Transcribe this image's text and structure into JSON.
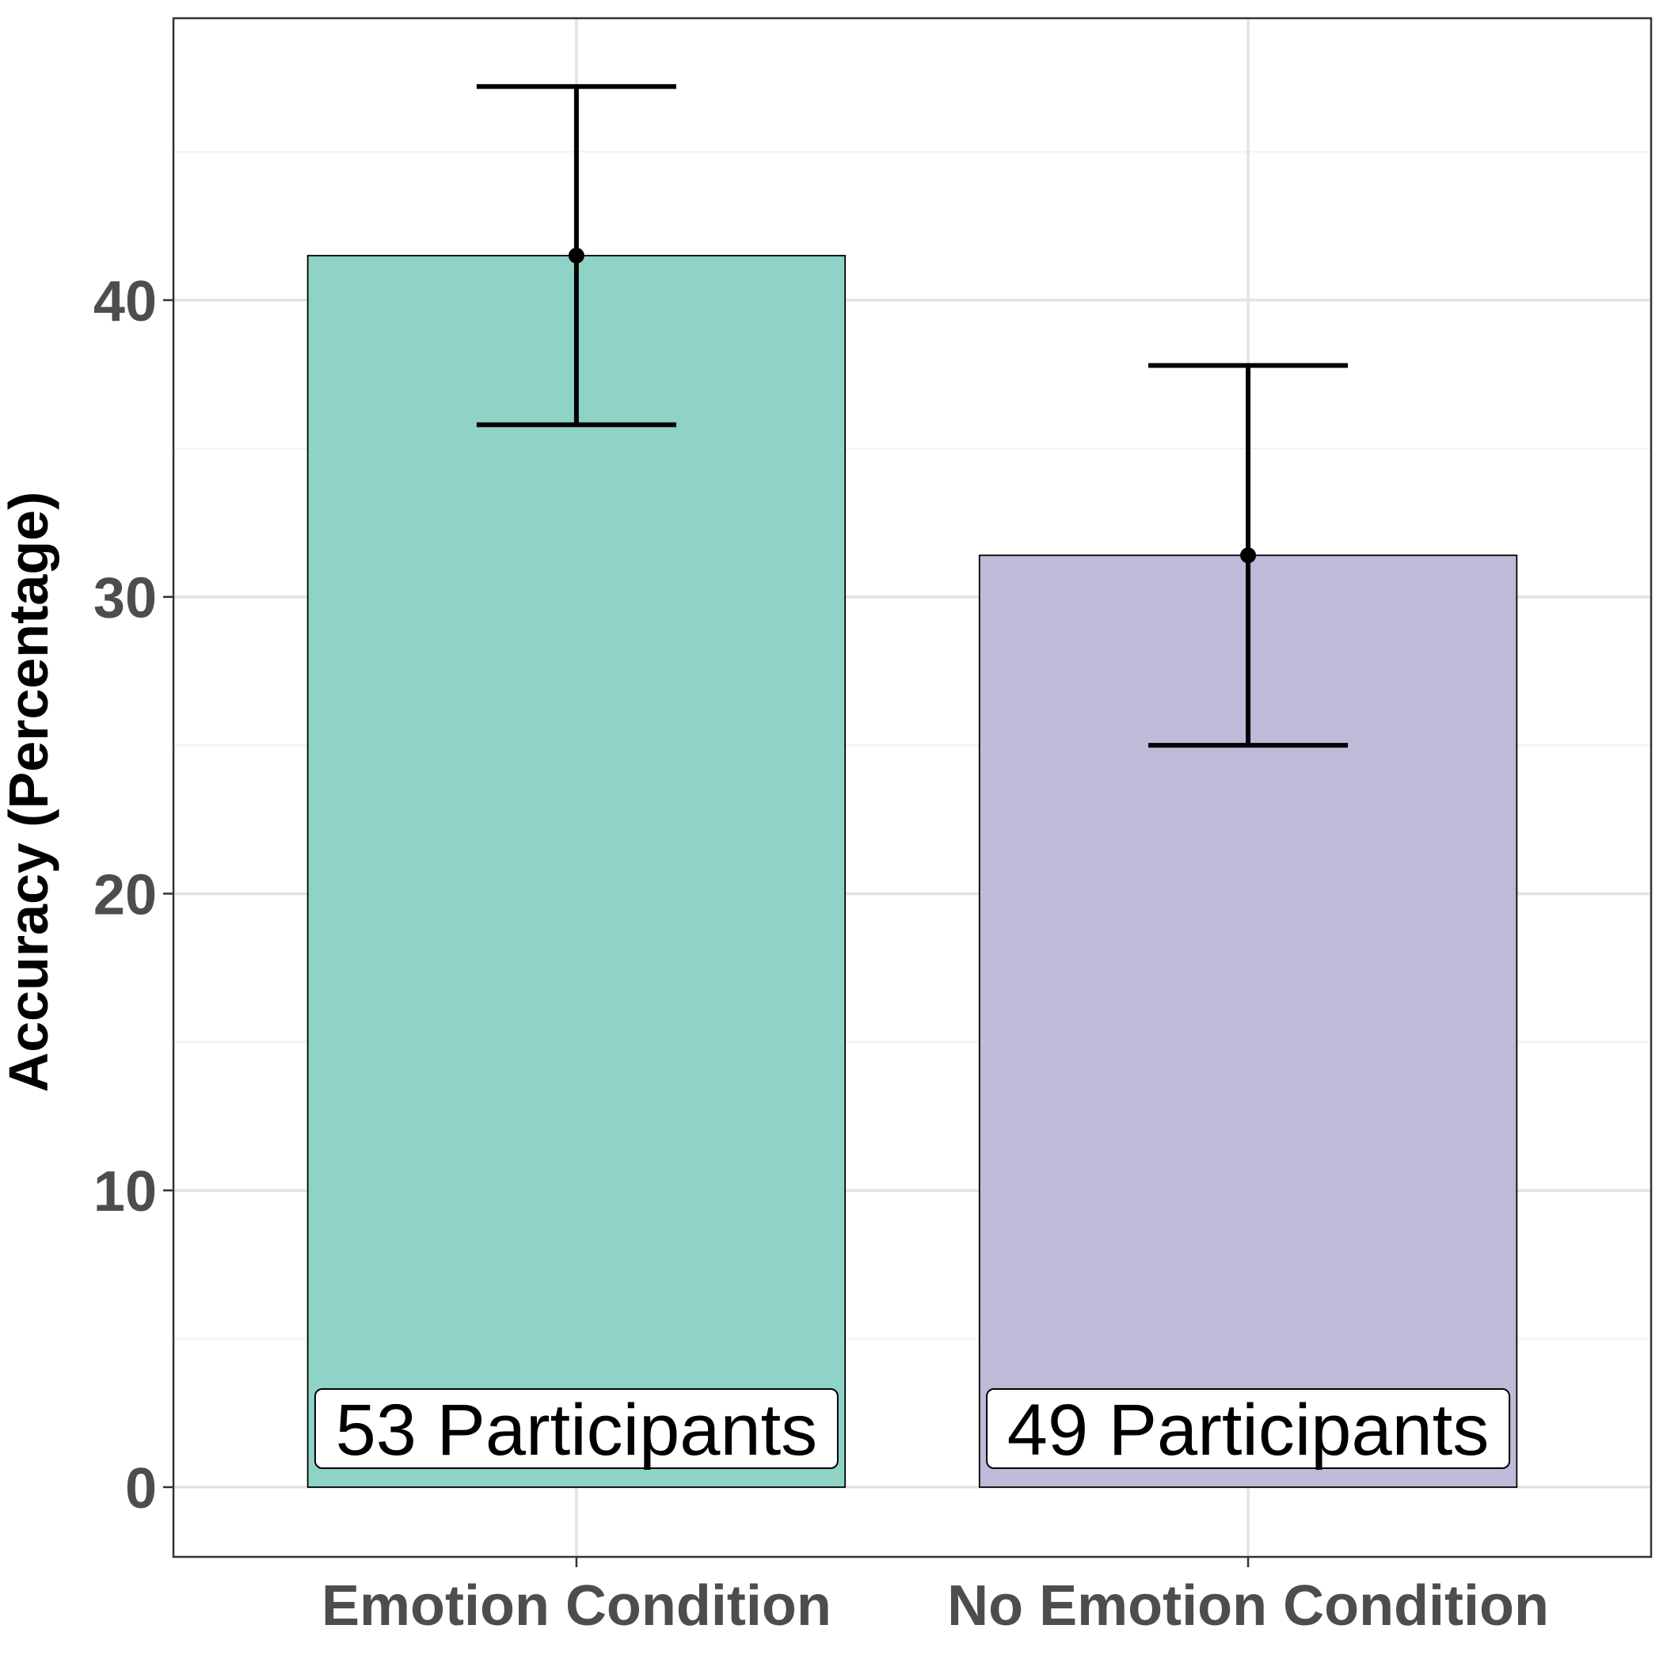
{
  "chart_data": {
    "type": "bar",
    "title": "",
    "xlabel": "",
    "ylabel": "Accuracy (Percentage)",
    "ylim": [
      -2.35,
      49.5
    ],
    "yticks": [
      0,
      10,
      20,
      30,
      40
    ],
    "grid": true,
    "categories": [
      "Emotion Condition",
      "No Emotion Condition"
    ],
    "values": [
      41.5,
      31.4
    ],
    "error_lower": [
      35.8,
      25.0
    ],
    "error_upper": [
      47.2,
      37.8
    ],
    "bar_labels": [
      "53 Participants",
      "49 Participants"
    ],
    "colors": [
      "#8fd3c7",
      "#bebbd9"
    ]
  }
}
